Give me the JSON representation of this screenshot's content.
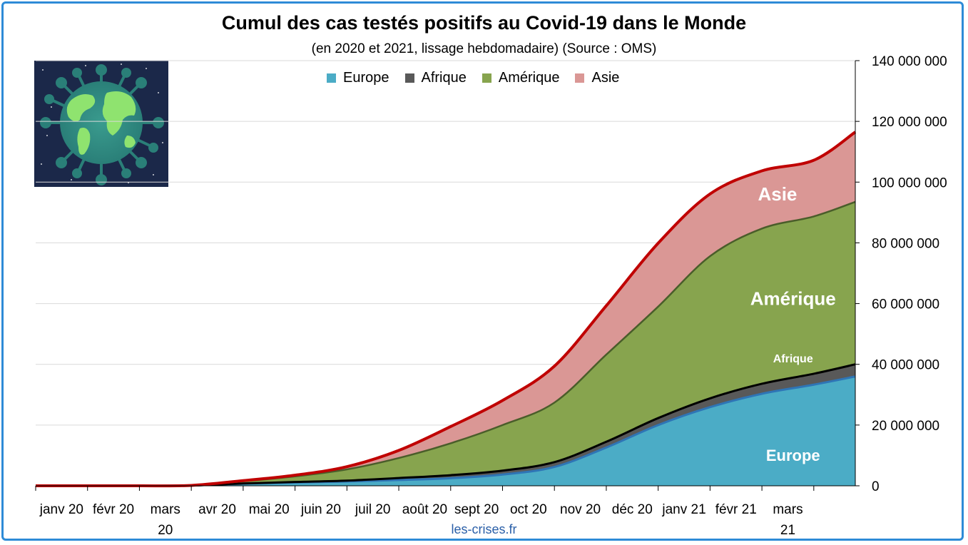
{
  "title": "Cumul des cas testés positifs au Covid-19 dans le Monde",
  "subtitle": "(en 2020 et 2021, lissage hebdomadaire) (Source : OMS)",
  "credit": "les-crises.fr",
  "chart_data": {
    "type": "area",
    "stacked": true,
    "title": "Cumul des cas testés positifs au Covid-19 dans le Monde",
    "subtitle": "(en 2020 et 2021, lissage hebdomadaire) (Source : OMS)",
    "categories": [
      "janv 20",
      "févr 20",
      "mars 20",
      "avr 20",
      "mai 20",
      "juin 20",
      "juil 20",
      "août 20",
      "sept 20",
      "oct 20",
      "nov 20",
      "déc 20",
      "janv 21",
      "févr 21",
      "mars 21"
    ],
    "x_end": 15.8,
    "ylim": [
      0,
      140000000
    ],
    "yticks": [
      0,
      20000000,
      40000000,
      60000000,
      80000000,
      100000000,
      120000000,
      140000000
    ],
    "ytick_labels": [
      "0",
      "20 000 000",
      "40 000 000",
      "60 000 000",
      "80 000 000",
      "100 000 000",
      "120 000 000",
      "140 000 000"
    ],
    "y_axis_position": "right",
    "grid": true,
    "legend_position": "top",
    "x": [
      0,
      1,
      2,
      3,
      4,
      5,
      6,
      7,
      8,
      9,
      10,
      11,
      12,
      13,
      14,
      15,
      15.8
    ],
    "series": [
      {
        "name": "Europe",
        "color": "#4bacc6",
        "label": "Europe",
        "values": [
          0,
          0,
          0,
          0.1,
          0.7,
          1.1,
          1.4,
          1.9,
          2.5,
          3.7,
          6.2,
          12.6,
          20.0,
          25.9,
          30.3,
          33.3,
          36.0
        ]
      },
      {
        "name": "Afrique",
        "color": "#595959",
        "label": "Afrique",
        "values": [
          0,
          0,
          0,
          0,
          0.05,
          0.15,
          0.3,
          0.65,
          1.0,
          1.3,
          1.6,
          1.9,
          2.3,
          2.9,
          3.3,
          3.6,
          4.0
        ]
      },
      {
        "name": "Amérique",
        "color": "#87a44e",
        "label": "Amérique",
        "values": [
          0,
          0,
          0,
          0.02,
          0.75,
          1.85,
          3.7,
          6.6,
          10.5,
          15.0,
          19.6,
          28.7,
          36.7,
          46.8,
          51.1,
          51.8,
          53.5
        ]
      },
      {
        "name": "Asie",
        "color": "#da9795",
        "label": "Asie",
        "values": [
          0,
          0,
          0,
          0.01,
          0.2,
          0.4,
          0.9,
          2.5,
          5.5,
          8.1,
          12.0,
          16.1,
          20.9,
          20.5,
          19.0,
          18.5,
          23.0
        ]
      }
    ],
    "values_unit": "millions",
    "area_labels": [
      "Europe",
      "Afrique",
      "Amérique",
      "Asie"
    ]
  }
}
